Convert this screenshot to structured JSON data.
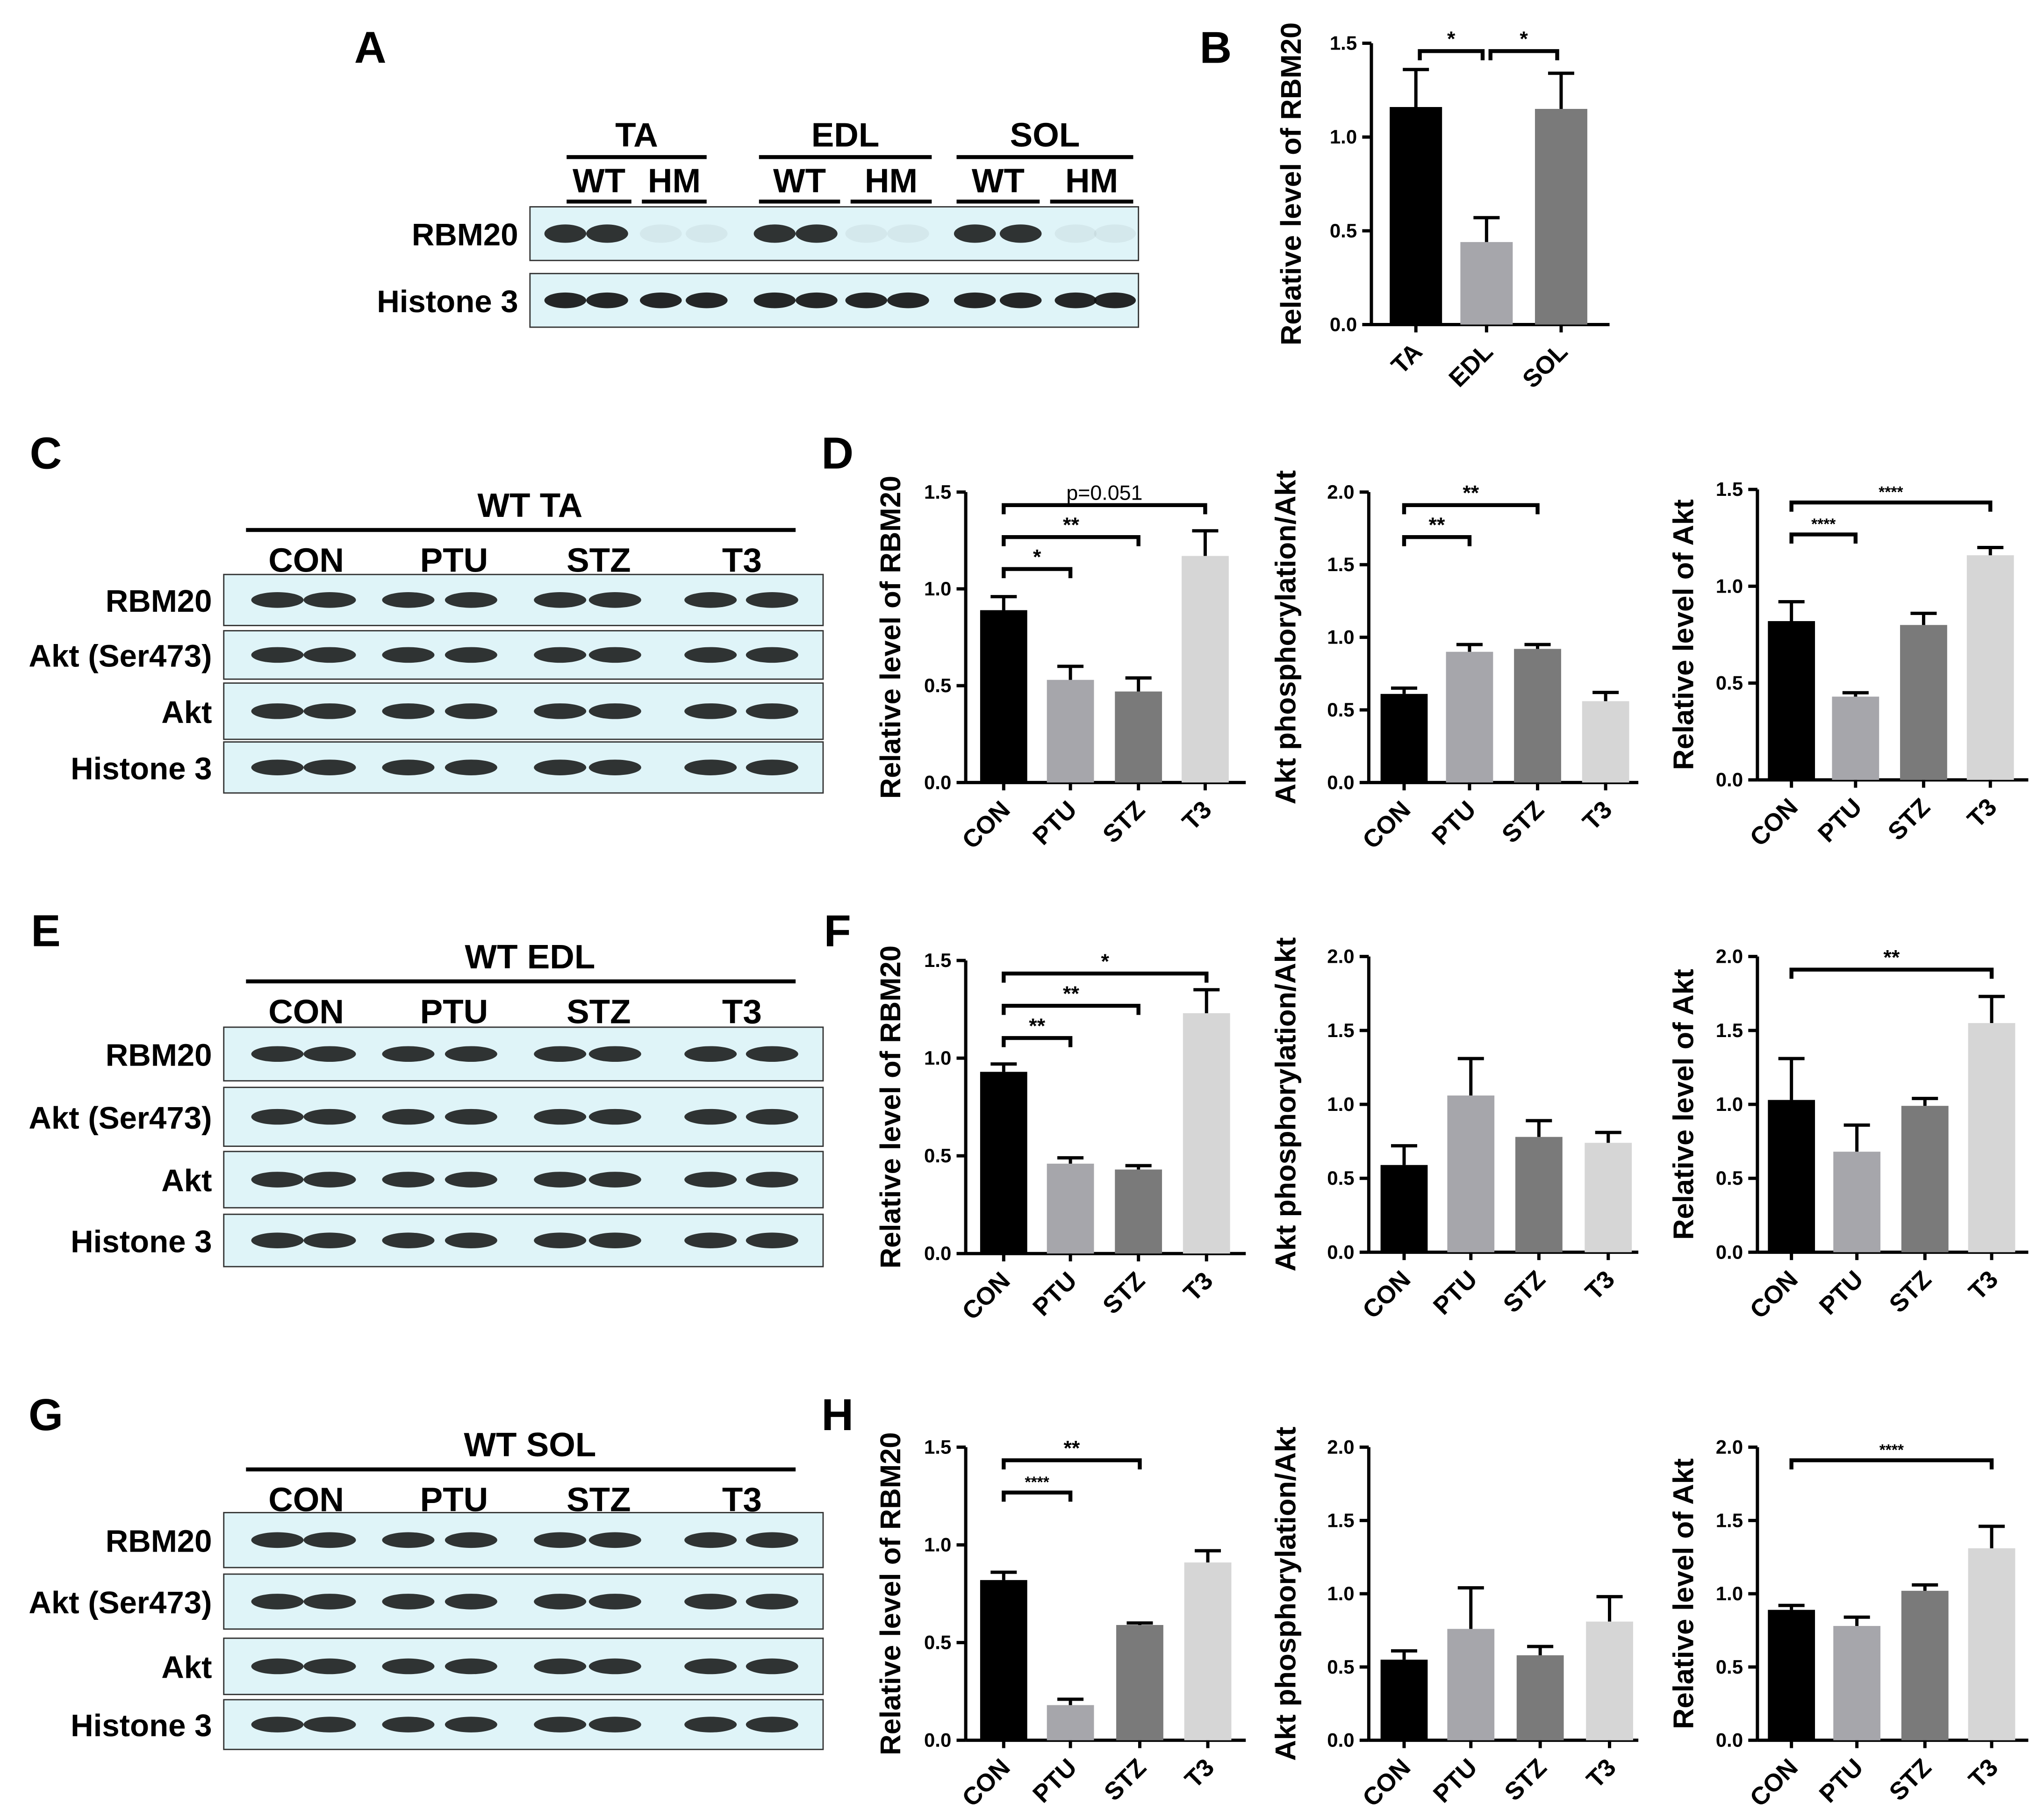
{
  "panel_letters": [
    "A",
    "B",
    "C",
    "D",
    "E",
    "F",
    "G",
    "H"
  ],
  "blots": {
    "A": {
      "groups": [
        "TA",
        "EDL",
        "SOL"
      ],
      "subgroups": [
        "WT",
        "HM"
      ],
      "rows": [
        "RBM20",
        "Histone 3"
      ]
    },
    "C": {
      "title": "WT TA",
      "groups": [
        "CON",
        "PTU",
        "STZ",
        "T3"
      ],
      "rows": [
        "RBM20",
        "Akt (Ser473)",
        "Akt",
        "Histone 3"
      ]
    },
    "E": {
      "title": "WT EDL",
      "groups": [
        "CON",
        "PTU",
        "STZ",
        "T3"
      ],
      "rows": [
        "RBM20",
        "Akt (Ser473)",
        "Akt",
        "Histone 3"
      ]
    },
    "G": {
      "title": "WT SOL",
      "groups": [
        "CON",
        "PTU",
        "STZ",
        "T3"
      ],
      "rows": [
        "RBM20",
        "Akt (Ser473)",
        "Akt",
        "Histone 3"
      ]
    }
  },
  "colors": {
    "blot_bg": "#dff4f8",
    "bar_black": "#000000",
    "bar_lightgray": "#a6a6ab",
    "bar_gray": "#7a7a7a",
    "bar_verylight": "#d6d6d6"
  },
  "chart_data": [
    {
      "id": "B",
      "type": "bar",
      "categories": [
        "TA",
        "EDL",
        "SOL"
      ],
      "values": [
        1.16,
        0.44,
        1.15
      ],
      "errors": [
        0.2,
        0.13,
        0.19
      ],
      "ylabel": "Relative level of RBM20",
      "ylim": [
        0,
        1.5
      ],
      "yticks": [
        "0.0",
        "0.5",
        "1.0",
        "1.5"
      ],
      "colors": [
        "#000000",
        "#a6a6ab",
        "#7a7a7a"
      ],
      "significance": [
        {
          "from": 0,
          "to": 1,
          "label": "*"
        },
        {
          "from": 1,
          "to": 2,
          "label": "*"
        }
      ]
    },
    {
      "id": "D1",
      "type": "bar",
      "categories": [
        "CON",
        "PTU",
        "STZ",
        "T3"
      ],
      "values": [
        0.89,
        0.53,
        0.47,
        1.17
      ],
      "errors": [
        0.07,
        0.07,
        0.07,
        0.13
      ],
      "ylabel": "Relative level of RBM20",
      "ylim": [
        0,
        1.5
      ],
      "yticks": [
        "0.0",
        "0.5",
        "1.0",
        "1.5"
      ],
      "colors": [
        "#000000",
        "#a6a6ab",
        "#7a7a7a",
        "#d6d6d6"
      ],
      "significance": [
        {
          "from": 0,
          "to": 1,
          "label": "*"
        },
        {
          "from": 0,
          "to": 2,
          "label": "**"
        },
        {
          "from": 0,
          "to": 3,
          "label": "p=0.051"
        }
      ]
    },
    {
      "id": "D2",
      "type": "bar",
      "categories": [
        "CON",
        "PTU",
        "STZ",
        "T3"
      ],
      "values": [
        0.61,
        0.9,
        0.92,
        0.56
      ],
      "errors": [
        0.04,
        0.05,
        0.03,
        0.06
      ],
      "ylabel": "Akt phosphorylation/Akt",
      "ylim": [
        0,
        2
      ],
      "yticks": [
        "0.0",
        "0.5",
        "1.0",
        "1.5",
        "2.0"
      ],
      "colors": [
        "#000000",
        "#a6a6ab",
        "#7a7a7a",
        "#d6d6d6"
      ],
      "significance": [
        {
          "from": 0,
          "to": 1,
          "label": "**"
        },
        {
          "from": 0,
          "to": 2,
          "label": "**"
        }
      ]
    },
    {
      "id": "D3",
      "type": "bar",
      "categories": [
        "CON",
        "PTU",
        "STZ",
        "T3"
      ],
      "values": [
        0.82,
        0.43,
        0.8,
        1.16
      ],
      "errors": [
        0.1,
        0.02,
        0.06,
        0.04
      ],
      "ylabel": "Relative level of Akt",
      "ylim": [
        0,
        1.5
      ],
      "yticks": [
        "0.0",
        "0.5",
        "1.0",
        "1.5"
      ],
      "colors": [
        "#000000",
        "#a6a6ab",
        "#7a7a7a",
        "#d6d6d6"
      ],
      "significance": [
        {
          "from": 0,
          "to": 1,
          "label": "****"
        },
        {
          "from": 0,
          "to": 3,
          "label": "****"
        }
      ]
    },
    {
      "id": "F1",
      "type": "bar",
      "categories": [
        "CON",
        "PTU",
        "STZ",
        "T3"
      ],
      "values": [
        0.93,
        0.46,
        0.43,
        1.23
      ],
      "errors": [
        0.04,
        0.03,
        0.02,
        0.12
      ],
      "ylabel": "Relative level of RBM20",
      "ylim": [
        0,
        1.5
      ],
      "yticks": [
        "0.0",
        "0.5",
        "1.0",
        "1.5"
      ],
      "colors": [
        "#000000",
        "#a6a6ab",
        "#7a7a7a",
        "#d6d6d6"
      ],
      "significance": [
        {
          "from": 0,
          "to": 1,
          "label": "**"
        },
        {
          "from": 0,
          "to": 2,
          "label": "**"
        },
        {
          "from": 0,
          "to": 3,
          "label": "*"
        }
      ]
    },
    {
      "id": "F2",
      "type": "bar",
      "categories": [
        "CON",
        "PTU",
        "STZ",
        "T3"
      ],
      "values": [
        0.59,
        1.06,
        0.78,
        0.74
      ],
      "errors": [
        0.13,
        0.25,
        0.11,
        0.07
      ],
      "ylabel": "Akt phosphorylation/Akt",
      "ylim": [
        0,
        2
      ],
      "yticks": [
        "0.0",
        "0.5",
        "1.0",
        "1.5",
        "2.0"
      ],
      "colors": [
        "#000000",
        "#a6a6ab",
        "#7a7a7a",
        "#d6d6d6"
      ],
      "significance": []
    },
    {
      "id": "F3",
      "type": "bar",
      "categories": [
        "CON",
        "PTU",
        "STZ",
        "T3"
      ],
      "values": [
        1.03,
        0.68,
        0.99,
        1.55
      ],
      "errors": [
        0.28,
        0.18,
        0.05,
        0.18
      ],
      "ylabel": "Relative level of Akt",
      "ylim": [
        0,
        2
      ],
      "yticks": [
        "0.0",
        "0.5",
        "1.0",
        "1.5",
        "2.0"
      ],
      "colors": [
        "#000000",
        "#a6a6ab",
        "#7a7a7a",
        "#d6d6d6"
      ],
      "significance": [
        {
          "from": 0,
          "to": 3,
          "label": "**"
        }
      ]
    },
    {
      "id": "H1",
      "type": "bar",
      "categories": [
        "CON",
        "PTU",
        "STZ",
        "T3"
      ],
      "values": [
        0.82,
        0.18,
        0.59,
        0.91
      ],
      "errors": [
        0.04,
        0.03,
        0.01,
        0.06
      ],
      "ylabel": "Relative level of RBM20",
      "ylim": [
        0,
        1.5
      ],
      "yticks": [
        "0.0",
        "0.5",
        "1.0",
        "1.5"
      ],
      "colors": [
        "#000000",
        "#a6a6ab",
        "#7a7a7a",
        "#d6d6d6"
      ],
      "significance": [
        {
          "from": 0,
          "to": 1,
          "label": "****"
        },
        {
          "from": 0,
          "to": 2,
          "label": "**"
        }
      ]
    },
    {
      "id": "H2",
      "type": "bar",
      "categories": [
        "CON",
        "PTU",
        "STZ",
        "T3"
      ],
      "values": [
        0.55,
        0.76,
        0.58,
        0.81
      ],
      "errors": [
        0.06,
        0.28,
        0.06,
        0.17
      ],
      "ylabel": "Akt phosphorylation/Akt",
      "ylim": [
        0,
        2
      ],
      "yticks": [
        "0.0",
        "0.5",
        "1.0",
        "1.5",
        "2.0"
      ],
      "colors": [
        "#000000",
        "#a6a6ab",
        "#7a7a7a",
        "#d6d6d6"
      ],
      "significance": []
    },
    {
      "id": "H3",
      "type": "bar",
      "categories": [
        "CON",
        "PTU",
        "STZ",
        "T3"
      ],
      "values": [
        0.89,
        0.78,
        1.02,
        1.31
      ],
      "errors": [
        0.03,
        0.06,
        0.04,
        0.15
      ],
      "ylabel": "Relative level of Akt",
      "ylim": [
        0,
        2
      ],
      "yticks": [
        "0.0",
        "0.5",
        "1.0",
        "1.5",
        "2.0"
      ],
      "colors": [
        "#000000",
        "#a6a6ab",
        "#7a7a7a",
        "#d6d6d6"
      ],
      "significance": [
        {
          "from": 0,
          "to": 3,
          "label": "****"
        }
      ]
    }
  ]
}
